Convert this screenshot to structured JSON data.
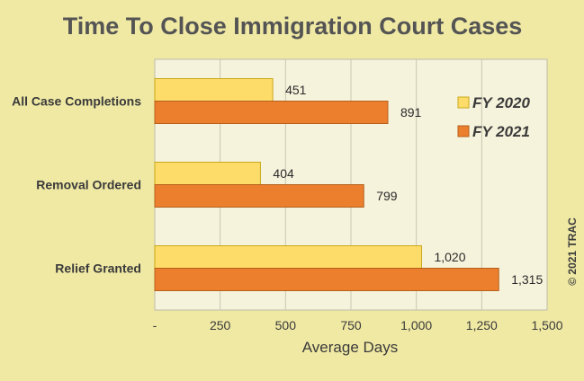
{
  "chart_data": {
    "type": "bar",
    "orientation": "horizontal",
    "title": "Time To Close Immigration Court Cases",
    "xlabel": "Average Days",
    "ylabel": "",
    "categories": [
      "All Case Completions",
      "Removal Ordered",
      "Relief Granted"
    ],
    "series": [
      {
        "name": "FY 2020",
        "values": [
          451,
          404,
          1020
        ],
        "labels": [
          "451",
          "404",
          "1,020"
        ],
        "color": "#fedc6a"
      },
      {
        "name": "FY 2021",
        "values": [
          891,
          799,
          1315
        ],
        "labels": [
          "891",
          "799",
          "1,315"
        ],
        "color": "#ec7f2e"
      }
    ],
    "xlim": [
      0,
      1500
    ],
    "xticks": [
      0,
      250,
      500,
      750,
      1000,
      1250,
      1500
    ],
    "xtick_labels": [
      "-",
      "250",
      "500",
      "750",
      "1,000",
      "1,250",
      "1,500"
    ],
    "grid": true,
    "legend_position": "top-right",
    "plot_background": "#f6f3dc",
    "page_background": "#f0e9a4",
    "copyright": "© 2021 TRAC"
  }
}
